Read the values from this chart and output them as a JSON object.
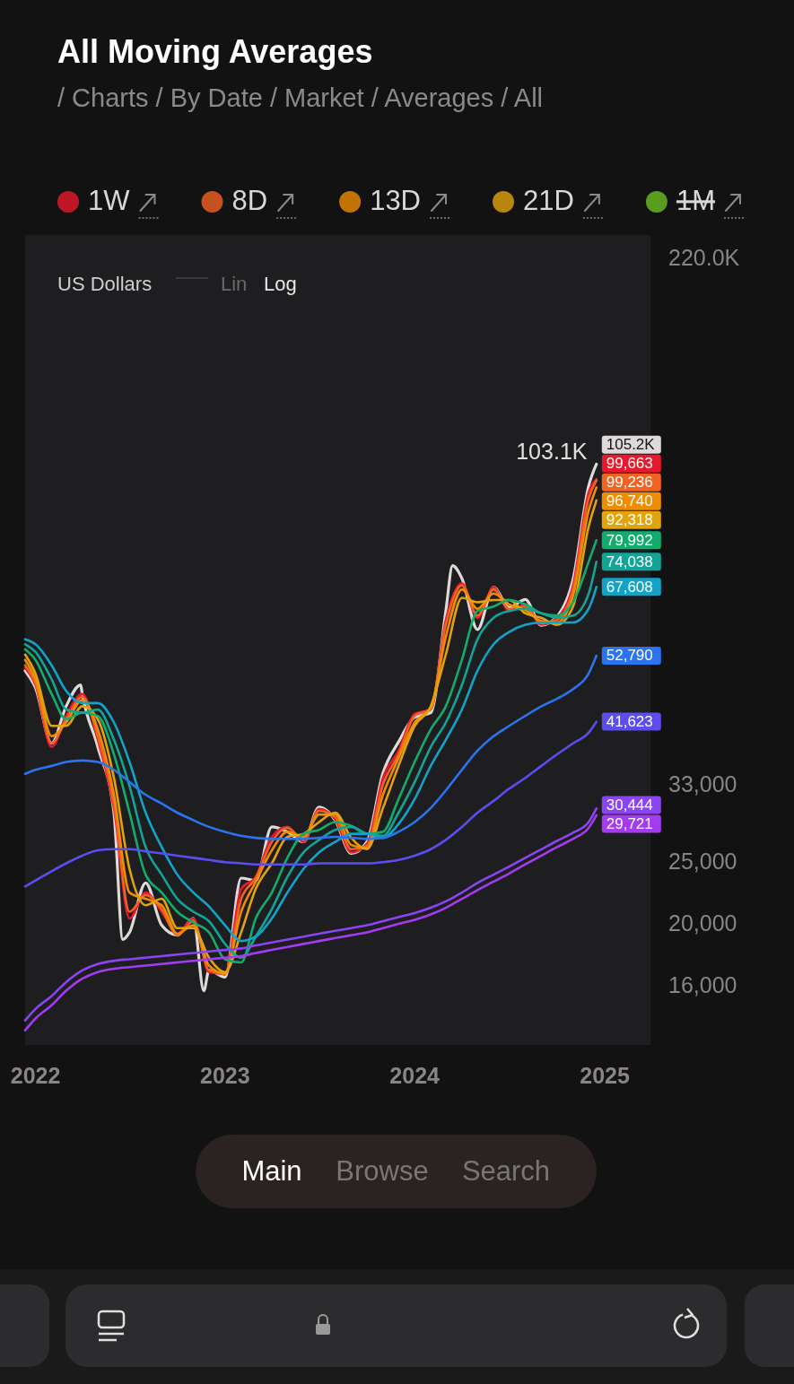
{
  "chart_data": {
    "type": "line",
    "title": "All Moving Averages",
    "subtitle": "/ Charts / By Date / Market / Averages / All",
    "ylabel": "US Dollars",
    "log": true,
    "legend": "top",
    "xlim": [
      "2021-12-12",
      "2025-03-30"
    ],
    "xticks": [
      {
        "value": "2022",
        "label": "2022"
      },
      {
        "value": "2023",
        "label": "2023"
      },
      {
        "value": "2024",
        "label": "2024"
      },
      {
        "value": "2025",
        "label": "2025"
      }
    ],
    "ylim": [
      13000,
      240000
    ],
    "yticks": [
      {
        "value": 16000,
        "label": "16,000"
      },
      {
        "value": 20000,
        "label": "20,000"
      },
      {
        "value": 25000,
        "label": "25,000"
      },
      {
        "value": 33000,
        "label": "33,000"
      },
      {
        "value": 220000,
        "label": "220.0K"
      }
    ],
    "x": [
      "2021-12-12",
      "2022-01-01",
      "2022-02-01",
      "2022-03-01",
      "2022-04-01",
      "2022-05-01",
      "2022-06-01",
      "2022-07-01",
      "2022-08-01",
      "2022-09-01",
      "2022-10-01",
      "2022-11-01",
      "2022-12-01",
      "2023-01-01",
      "2023-02-01",
      "2023-03-01",
      "2023-04-01",
      "2023-05-01",
      "2023-06-01",
      "2023-07-01",
      "2023-08-01",
      "2023-09-01",
      "2023-10-01",
      "2023-11-01",
      "2023-12-01",
      "2024-01-01",
      "2024-02-01",
      "2024-03-01",
      "2024-04-01",
      "2024-05-01",
      "2024-06-01",
      "2024-07-01",
      "2024-08-01",
      "2024-09-01",
      "2024-10-01",
      "2024-11-01",
      "2024-12-01",
      "2024-12-16"
    ],
    "series": [
      {
        "color": "#dedada",
        "x": [
          "2021-12-12",
          "2022-01-01",
          "2022-02-01",
          "2022-03-01",
          "2022-03-29",
          "2022-04-01",
          "2022-05-01",
          "2022-06-01",
          "2022-06-18",
          "2022-07-01",
          "2022-08-01",
          "2022-09-01",
          "2022-10-01",
          "2022-11-01",
          "2022-11-21",
          "2022-12-01",
          "2023-01-01",
          "2023-02-01",
          "2023-03-01",
          "2023-04-01",
          "2023-05-01",
          "2023-06-01",
          "2023-07-01",
          "2023-08-01",
          "2023-09-01",
          "2023-10-01",
          "2023-11-01",
          "2023-12-01",
          "2024-01-01",
          "2024-02-01",
          "2024-03-01",
          "2024-03-14",
          "2024-04-01",
          "2024-05-01",
          "2024-06-01",
          "2024-07-01",
          "2024-08-01",
          "2024-09-01",
          "2024-10-01",
          "2024-11-01",
          "2024-12-01",
          "2024-12-16"
        ],
        "values": [
          50000,
          47000,
          38500,
          44000,
          47500,
          46000,
          38000,
          30000,
          19000,
          19500,
          23300,
          20000,
          19300,
          20500,
          15800,
          17000,
          16600,
          23700,
          23500,
          28500,
          28000,
          27000,
          30600,
          29200,
          25900,
          27000,
          34600,
          38700,
          42300,
          43000,
          62000,
          73000,
          69700,
          58000,
          67500,
          62800,
          64600,
          58900,
          60800,
          69500,
          97200,
          105200
        ],
        "value_labels": [
          null,
          null,
          null,
          null,
          null,
          null,
          null,
          null,
          null,
          null,
          null,
          null,
          null,
          null,
          null,
          null,
          null,
          null,
          null,
          null,
          null,
          null,
          null,
          null,
          null,
          null,
          null,
          null,
          null,
          null,
          null,
          null,
          null,
          null,
          null,
          null,
          null,
          null,
          null,
          null,
          null,
          "105.2K"
        ]
      },
      {
        "name": "1W",
        "color": "#e8192c",
        "values": [
          50500,
          47500,
          38000,
          42500,
          46000,
          39000,
          30500,
          20500,
          22500,
          21000,
          19400,
          20500,
          16900,
          16800,
          22800,
          23800,
          27500,
          28500,
          27000,
          30400,
          29300,
          26000,
          26800,
          34000,
          37500,
          42800,
          43500,
          60000,
          68500,
          60500,
          67500,
          62000,
          63500,
          59000,
          60500,
          68000,
          95000,
          99663
        ],
        "value_labels": [
          null,
          null,
          null,
          null,
          null,
          null,
          null,
          null,
          null,
          null,
          null,
          null,
          null,
          null,
          null,
          null,
          null,
          null,
          null,
          null,
          null,
          null,
          null,
          null,
          null,
          null,
          null,
          null,
          null,
          null,
          null,
          null,
          null,
          null,
          null,
          null,
          null,
          "99,663"
        ]
      },
      {
        "name": "8D",
        "color": "#f26322",
        "values": [
          51000,
          47800,
          38500,
          42000,
          45500,
          39500,
          31000,
          21000,
          22300,
          21200,
          19300,
          20300,
          17000,
          16800,
          22000,
          23700,
          27000,
          28400,
          27200,
          30200,
          29500,
          26300,
          26600,
          33200,
          37000,
          42500,
          43600,
          59000,
          68000,
          61000,
          67000,
          62500,
          63000,
          59300,
          60000,
          67000,
          93000,
          99236
        ],
        "value_labels": [
          null,
          null,
          null,
          null,
          null,
          null,
          null,
          null,
          null,
          null,
          null,
          null,
          null,
          null,
          null,
          null,
          null,
          null,
          null,
          null,
          null,
          null,
          null,
          null,
          null,
          null,
          null,
          null,
          null,
          null,
          null,
          null,
          null,
          null,
          null,
          null,
          null,
          "99,236"
        ]
      },
      {
        "name": "13D",
        "color": "#f08c00",
        "values": [
          52000,
          48500,
          39500,
          41500,
          45000,
          40500,
          32000,
          22500,
          22000,
          21500,
          19400,
          20000,
          17300,
          16800,
          21000,
          23400,
          26200,
          28000,
          27500,
          29800,
          29800,
          26700,
          26400,
          32000,
          36500,
          41500,
          43800,
          56500,
          67000,
          62500,
          66000,
          63500,
          62200,
          59800,
          59500,
          65500,
          89000,
          96740
        ],
        "value_labels": [
          null,
          null,
          null,
          null,
          null,
          null,
          null,
          null,
          null,
          null,
          null,
          null,
          null,
          null,
          null,
          null,
          null,
          null,
          null,
          null,
          null,
          null,
          null,
          null,
          null,
          null,
          null,
          null,
          null,
          null,
          null,
          null,
          null,
          null,
          null,
          null,
          null,
          "96,740"
        ]
      },
      {
        "name": "21D",
        "color": "#e2a30c",
        "values": [
          53000,
          49500,
          41000,
          41000,
          44000,
          42000,
          34000,
          24500,
          21500,
          22000,
          19800,
          19800,
          17800,
          16900,
          19500,
          22800,
          25000,
          27500,
          27800,
          29000,
          30000,
          27400,
          26300,
          30500,
          35500,
          41000,
          44000,
          53000,
          65000,
          64000,
          64500,
          64500,
          61500,
          60500,
          59000,
          63000,
          84000,
          92318
        ],
        "value_labels": [
          null,
          null,
          null,
          null,
          null,
          null,
          null,
          null,
          null,
          null,
          null,
          null,
          null,
          null,
          null,
          null,
          null,
          null,
          null,
          null,
          null,
          null,
          null,
          null,
          null,
          null,
          null,
          null,
          null,
          null,
          null,
          null,
          null,
          null,
          null,
          null,
          null,
          "92,318"
        ]
      },
      {
        "name": "1M",
        "color": "#6cc024",
        "values": [
          null,
          null,
          null,
          null,
          null,
          null,
          null,
          null,
          null,
          null,
          null,
          null,
          null,
          null,
          null,
          null,
          null,
          null,
          null,
          null,
          null,
          null,
          null,
          null,
          null,
          null,
          null,
          null,
          null,
          null,
          null,
          null,
          null,
          null,
          null,
          null,
          null,
          null
        ]
      },
      {
        "color": "#12ad6c",
        "values": [
          54000,
          52000,
          46000,
          42000,
          43000,
          42500,
          37000,
          30000,
          24000,
          22500,
          21000,
          20200,
          19500,
          17700,
          17500,
          20500,
          22500,
          25500,
          27800,
          28200,
          29000,
          28600,
          27800,
          28000,
          31500,
          36000,
          40500,
          44000,
          52000,
          62000,
          63000,
          64500,
          63500,
          61500,
          61000,
          64000,
          74000,
          79992
        ],
        "value_labels": [
          null,
          null,
          null,
          null,
          null,
          null,
          null,
          null,
          null,
          null,
          null,
          null,
          null,
          null,
          null,
          null,
          null,
          null,
          null,
          null,
          null,
          null,
          null,
          null,
          null,
          null,
          null,
          null,
          null,
          null,
          null,
          null,
          null,
          null,
          null,
          null,
          null,
          "79,992"
        ]
      },
      {
        "color": "#11a597",
        "values": [
          55000,
          53500,
          48500,
          43500,
          43000,
          43500,
          39000,
          33000,
          26500,
          24000,
          22000,
          21000,
          20300,
          18700,
          17800,
          19200,
          21200,
          23800,
          26000,
          27200,
          28200,
          28500,
          27800,
          27600,
          30000,
          33500,
          38000,
          41500,
          47500,
          56000,
          60500,
          62000,
          62500,
          61500,
          60500,
          61000,
          66000,
          74038
        ],
        "value_labels": [
          null,
          null,
          null,
          null,
          null,
          null,
          null,
          null,
          null,
          null,
          null,
          null,
          null,
          null,
          null,
          null,
          null,
          null,
          null,
          null,
          null,
          null,
          null,
          null,
          null,
          null,
          null,
          null,
          null,
          null,
          null,
          null,
          null,
          null,
          null,
          null,
          null,
          "74,038"
        ]
      },
      {
        "color": "#12a4c8",
        "values": [
          56000,
          55000,
          51000,
          46500,
          44500,
          44500,
          41500,
          36000,
          30000,
          26500,
          24000,
          22500,
          21400,
          20000,
          18900,
          19200,
          20500,
          22500,
          24500,
          26000,
          27000,
          27800,
          27800,
          27400,
          28800,
          31500,
          35500,
          39000,
          43500,
          50000,
          55000,
          57500,
          59000,
          59500,
          59500,
          59500,
          62500,
          67608
        ],
        "value_labels": [
          null,
          null,
          null,
          null,
          null,
          null,
          null,
          null,
          null,
          null,
          null,
          null,
          null,
          null,
          null,
          null,
          null,
          null,
          null,
          null,
          null,
          null,
          null,
          null,
          null,
          null,
          null,
          null,
          null,
          null,
          null,
          null,
          null,
          null,
          null,
          null,
          null,
          "67,608"
        ]
      },
      {
        "color": "#2a74f0",
        "values": [
          34500,
          35000,
          35500,
          36000,
          36200,
          36000,
          35000,
          33500,
          32000,
          31000,
          30000,
          29200,
          28500,
          28000,
          27600,
          27400,
          27300,
          27300,
          27300,
          27400,
          27500,
          27400,
          27300,
          27400,
          28000,
          29000,
          30500,
          32500,
          35000,
          37500,
          39500,
          41000,
          42500,
          44000,
          45200,
          46800,
          49500,
          52790
        ],
        "value_labels": [
          null,
          null,
          null,
          null,
          null,
          null,
          null,
          null,
          null,
          null,
          null,
          null,
          null,
          null,
          null,
          null,
          null,
          null,
          null,
          null,
          null,
          null,
          null,
          null,
          null,
          null,
          null,
          null,
          null,
          null,
          null,
          null,
          null,
          null,
          null,
          null,
          null,
          "52,790"
        ]
      },
      {
        "color": "#5b4ef0",
        "values": [
          23000,
          23500,
          24300,
          25000,
          25700,
          26200,
          26300,
          26300,
          26100,
          25900,
          25700,
          25500,
          25300,
          25100,
          25000,
          24900,
          24900,
          24900,
          24900,
          25000,
          25000,
          25000,
          25000,
          25100,
          25300,
          25700,
          26300,
          27200,
          28500,
          30000,
          31300,
          32700,
          34000,
          35500,
          37000,
          38500,
          40000,
          41623
        ],
        "value_labels": [
          null,
          null,
          null,
          null,
          null,
          null,
          null,
          null,
          null,
          null,
          null,
          null,
          null,
          null,
          null,
          null,
          null,
          null,
          null,
          null,
          null,
          null,
          null,
          null,
          null,
          null,
          null,
          null,
          null,
          null,
          null,
          null,
          null,
          null,
          null,
          null,
          null,
          "41,623"
        ]
      },
      {
        "color": "#8a45f2",
        "values": [
          14200,
          14800,
          15500,
          16300,
          17000,
          17400,
          17600,
          17700,
          17800,
          17900,
          18000,
          18100,
          18200,
          18300,
          18400,
          18600,
          18800,
          19000,
          19200,
          19400,
          19600,
          19800,
          20000,
          20300,
          20600,
          20900,
          21300,
          21800,
          22500,
          23300,
          24000,
          24700,
          25500,
          26300,
          27100,
          27900,
          29000,
          30444
        ],
        "value_labels": [
          null,
          null,
          null,
          null,
          null,
          null,
          null,
          null,
          null,
          null,
          null,
          null,
          null,
          null,
          null,
          null,
          null,
          null,
          null,
          null,
          null,
          null,
          null,
          null,
          null,
          null,
          null,
          null,
          null,
          null,
          null,
          null,
          null,
          null,
          null,
          null,
          null,
          "30,444"
        ]
      },
      {
        "color": "#a33cf0",
        "values": [
          13700,
          14300,
          15000,
          15800,
          16500,
          16900,
          17100,
          17200,
          17300,
          17400,
          17500,
          17600,
          17700,
          17800,
          17900,
          18100,
          18300,
          18500,
          18700,
          18900,
          19100,
          19300,
          19500,
          19800,
          20100,
          20400,
          20800,
          21300,
          22000,
          22700,
          23400,
          24100,
          24900,
          25700,
          26500,
          27300,
          28400,
          29721
        ],
        "value_labels": [
          null,
          null,
          null,
          null,
          null,
          null,
          null,
          null,
          null,
          null,
          null,
          null,
          null,
          null,
          null,
          null,
          null,
          null,
          null,
          null,
          null,
          null,
          null,
          null,
          null,
          null,
          null,
          null,
          null,
          null,
          null,
          null,
          null,
          null,
          null,
          null,
          null,
          "29,721"
        ]
      }
    ],
    "annotations": [
      "Lin",
      "Log",
      {
        "text": "103.1K",
        "x": "2024-12-12",
        "y": 103100
      },
      "Main",
      "Browse",
      "Search"
    ]
  }
}
